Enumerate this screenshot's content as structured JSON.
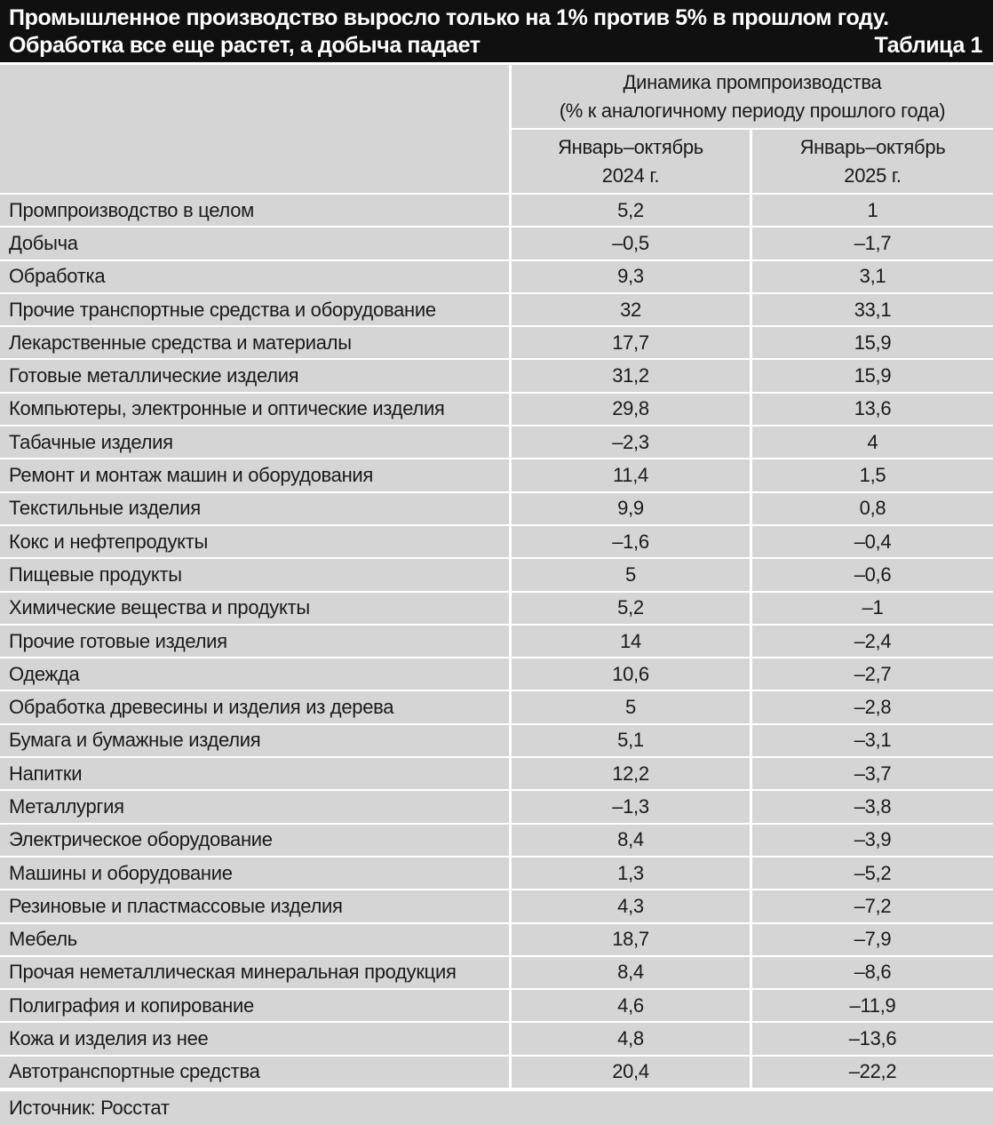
{
  "header": {
    "title_line1": "Промышленное производство выросло только на 1% против 5% в прошлом году.",
    "title_line2": "Обработка все еще растет, а добыча падает",
    "table_label": "Таблица 1"
  },
  "table": {
    "group_header_line1": "Динамика промпроизводства",
    "group_header_line2": "(% к аналогичному периоду прошлого года)",
    "col_2024": {
      "line1": "Январь–октябрь",
      "line2": "2024 г."
    },
    "col_2025": {
      "line1": "Январь–октябрь",
      "line2": "2025 г."
    },
    "rows": [
      {
        "label": "Промпроизводство в целом",
        "y2024": "5,2",
        "y2025": "1"
      },
      {
        "label": "Добыча",
        "y2024": "–0,5",
        "y2025": "–1,7"
      },
      {
        "label": "Обработка",
        "y2024": "9,3",
        "y2025": "3,1"
      },
      {
        "label": "Прочие транспортные средства и оборудование",
        "y2024": "32",
        "y2025": "33,1"
      },
      {
        "label": "Лекарственные средства и материалы",
        "y2024": "17,7",
        "y2025": "15,9"
      },
      {
        "label": "Готовые металлические изделия",
        "y2024": "31,2",
        "y2025": "15,9"
      },
      {
        "label": "Компьютеры, электронные и оптические изделия",
        "y2024": "29,8",
        "y2025": "13,6"
      },
      {
        "label": "Табачные изделия",
        "y2024": "–2,3",
        "y2025": "4"
      },
      {
        "label": "Ремонт и монтаж машин и оборудования",
        "y2024": "11,4",
        "y2025": "1,5"
      },
      {
        "label": "Текстильные изделия",
        "y2024": "9,9",
        "y2025": "0,8"
      },
      {
        "label": "Кокс и нефтепродукты",
        "y2024": "–1,6",
        "y2025": "–0,4"
      },
      {
        "label": "Пищевые продукты",
        "y2024": "5",
        "y2025": "–0,6"
      },
      {
        "label": "Химические вещества и продукты",
        "y2024": "5,2",
        "y2025": "–1"
      },
      {
        "label": "Прочие готовые изделия",
        "y2024": "14",
        "y2025": "–2,4"
      },
      {
        "label": "Одежда",
        "y2024": "10,6",
        "y2025": "–2,7"
      },
      {
        "label": "Обработка древесины и изделия из дерева",
        "y2024": "5",
        "y2025": "–2,8"
      },
      {
        "label": "Бумага и бумажные изделия",
        "y2024": "5,1",
        "y2025": "–3,1"
      },
      {
        "label": "Напитки",
        "y2024": "12,2",
        "y2025": "–3,7"
      },
      {
        "label": "Металлургия",
        "y2024": "–1,3",
        "y2025": "–3,8"
      },
      {
        "label": "Электрическое оборудование",
        "y2024": "8,4",
        "y2025": "–3,9"
      },
      {
        "label": "Машины и оборудование",
        "y2024": "1,3",
        "y2025": "–5,2"
      },
      {
        "label": "Резиновые и пластмассовые изделия",
        "y2024": "4,3",
        "y2025": "–7,2"
      },
      {
        "label": "Мебель",
        "y2024": "18,7",
        "y2025": "–7,9"
      },
      {
        "label": "Прочая неметаллическая минеральная продукция",
        "y2024": "8,4",
        "y2025": "–8,6"
      },
      {
        "label": "Полиграфия и копирование",
        "y2024": "4,6",
        "y2025": "–11,9"
      },
      {
        "label": "Кожа и изделия из нее",
        "y2024": "4,8",
        "y2025": "–13,6"
      },
      {
        "label": "Автотранспортные средства",
        "y2024": "20,4",
        "y2025": "–22,2"
      }
    ]
  },
  "footer": {
    "source": "Источник: Росстат"
  },
  "colors": {
    "headline_bg": "#101010",
    "headline_text": "#ffffff",
    "row_bg": "#d5d5d5",
    "separator": "#ffffff",
    "text": "#1a1a1a"
  },
  "chart_data": {
    "type": "table",
    "title": "Промышленное производство выросло только на 1% против 5% в прошлом году. Обработка все еще растет, а добыча падает",
    "subtitle": "Динамика промпроизводства (% к аналогичному периоду прошлого года)",
    "table_label": "Таблица 1",
    "categories": [
      "Промпроизводство в целом",
      "Добыча",
      "Обработка",
      "Прочие транспортные средства и оборудование",
      "Лекарственные средства и материалы",
      "Готовые металлические изделия",
      "Компьютеры, электронные и оптические изделия",
      "Табачные изделия",
      "Ремонт и монтаж машин и оборудования",
      "Текстильные изделия",
      "Кокс и нефтепродукты",
      "Пищевые продукты",
      "Химические вещества и продукты",
      "Прочие готовые изделия",
      "Одежда",
      "Обработка древесины и изделия из дерева",
      "Бумага и бумажные изделия",
      "Напитки",
      "Металлургия",
      "Электрическое оборудование",
      "Машины и оборудование",
      "Резиновые и пластмассовые изделия",
      "Мебель",
      "Прочая неметаллическая минеральная продукция",
      "Полиграфия и копирование",
      "Кожа и изделия из нее",
      "Автотранспортные средства"
    ],
    "series": [
      {
        "name": "Январь–октябрь 2024 г.",
        "values": [
          5.2,
          -0.5,
          9.3,
          32,
          17.7,
          31.2,
          29.8,
          -2.3,
          11.4,
          9.9,
          -1.6,
          5,
          5.2,
          14,
          10.6,
          5,
          5.1,
          12.2,
          -1.3,
          8.4,
          1.3,
          4.3,
          18.7,
          8.4,
          4.6,
          4.8,
          20.4
        ]
      },
      {
        "name": "Январь–октябрь 2025 г.",
        "values": [
          1,
          -1.7,
          3.1,
          33.1,
          15.9,
          15.9,
          13.6,
          4,
          1.5,
          0.8,
          -0.4,
          -0.6,
          -1,
          -2.4,
          -2.7,
          -2.8,
          -3.1,
          -3.7,
          -3.8,
          -3.9,
          -5.2,
          -7.2,
          -7.9,
          -8.6,
          -11.9,
          -13.6,
          -22.2
        ]
      }
    ],
    "source": "Источник: Росстат"
  }
}
